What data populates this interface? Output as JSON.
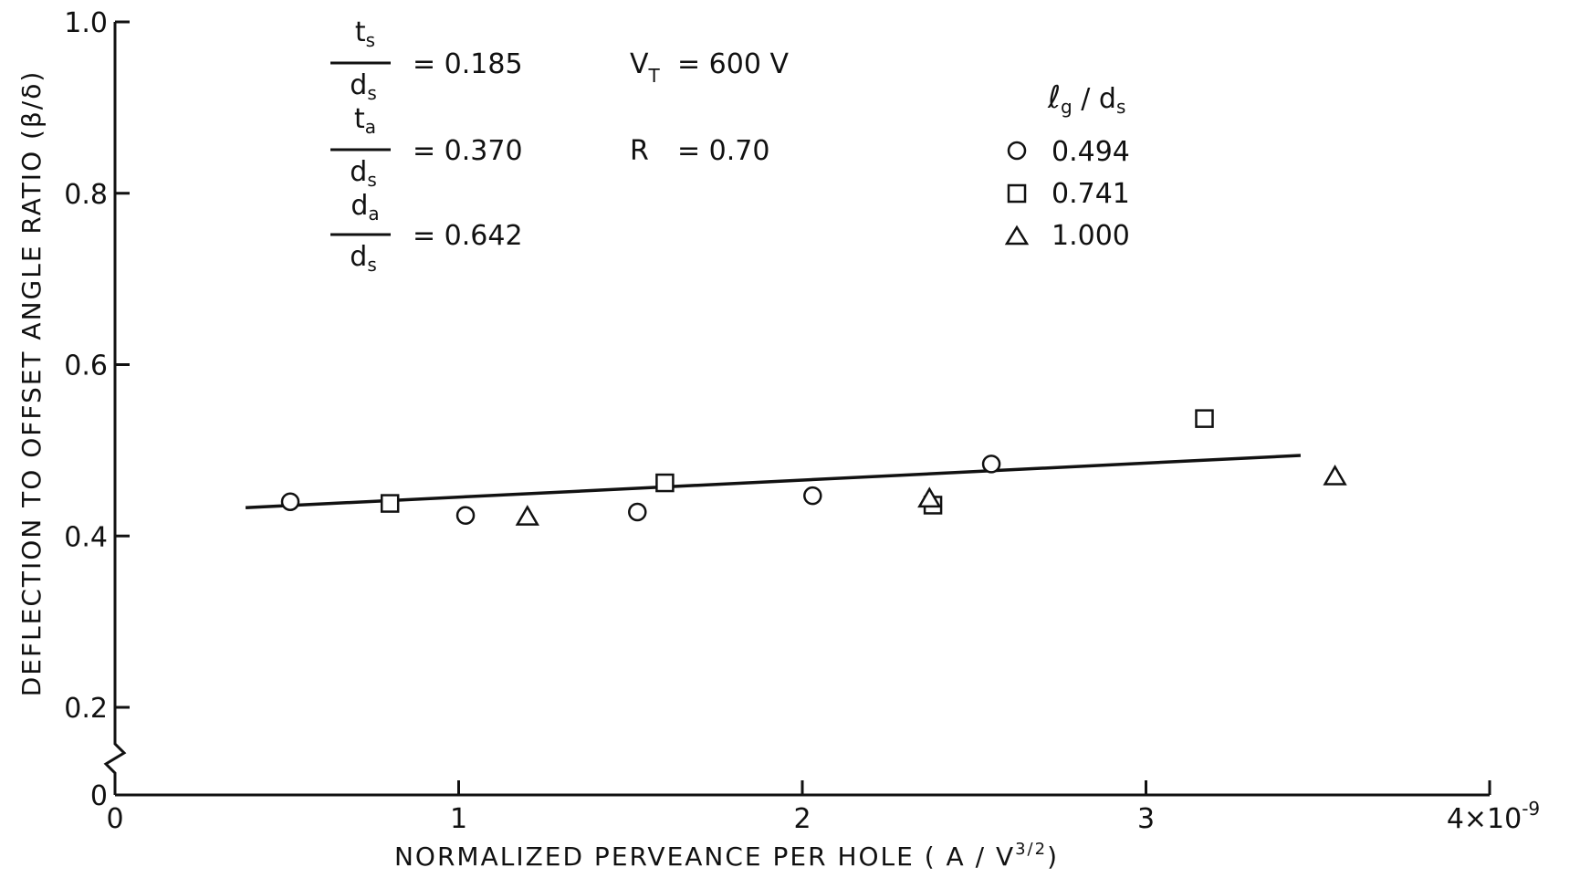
{
  "chart_data": {
    "type": "scatter",
    "xlabel": "NORMALIZED PERVEANCE PER HOLE ( A / V",
    "xlabel_exp": "3/2",
    "xlabel_close": ")",
    "ylabel": "DEFLECTION TO OFFSET ANGLE RATIO (β/δ)",
    "xlim": [
      0,
      4
    ],
    "ylim": [
      0,
      1.0
    ],
    "x_ticks": [
      0,
      1,
      2,
      3,
      4
    ],
    "x_tick_labels": [
      "0",
      "1",
      "2",
      "3",
      "4×10"
    ],
    "x_multiplier_exp": "-9",
    "y_ticks": [
      0,
      0.2,
      0.4,
      0.6,
      0.8,
      1.0
    ],
    "y_tick_labels": [
      "0",
      "0.2",
      "0.4",
      "0.6",
      "0.8",
      "1.0"
    ],
    "axis_break": "between 0 and 0.2 on y-axis",
    "grid": false,
    "legend": {
      "title": "ℓg / ds",
      "placement": "top-right"
    },
    "parameters": [
      {
        "num": "ts",
        "den": "ds",
        "value": "= 0.185"
      },
      {
        "num": "ta",
        "den": "ds",
        "value": "= 0.370"
      },
      {
        "num": "da",
        "den": "ds",
        "value": "= 0.642"
      }
    ],
    "conditions": [
      {
        "label": "VT",
        "value": "= 600 V"
      },
      {
        "label": "R",
        "value": "= 0.70"
      }
    ],
    "series": [
      {
        "name": "0.494",
        "marker": "circle",
        "x": [
          0.51,
          1.02,
          1.52,
          2.03,
          2.55
        ],
        "y": [
          0.44,
          0.424,
          0.428,
          0.447,
          0.484
        ]
      },
      {
        "name": "0.741",
        "marker": "square",
        "x": [
          0.8,
          1.6,
          2.38,
          3.17
        ],
        "y": [
          0.438,
          0.462,
          0.436,
          0.537
        ]
      },
      {
        "name": "1.000",
        "marker": "triangle",
        "x": [
          1.2,
          2.37,
          3.55
        ],
        "y": [
          0.422,
          0.443,
          0.469
        ]
      }
    ],
    "fit_line": {
      "x": [
        0.38,
        3.45
      ],
      "y": [
        0.433,
        0.494
      ]
    }
  }
}
